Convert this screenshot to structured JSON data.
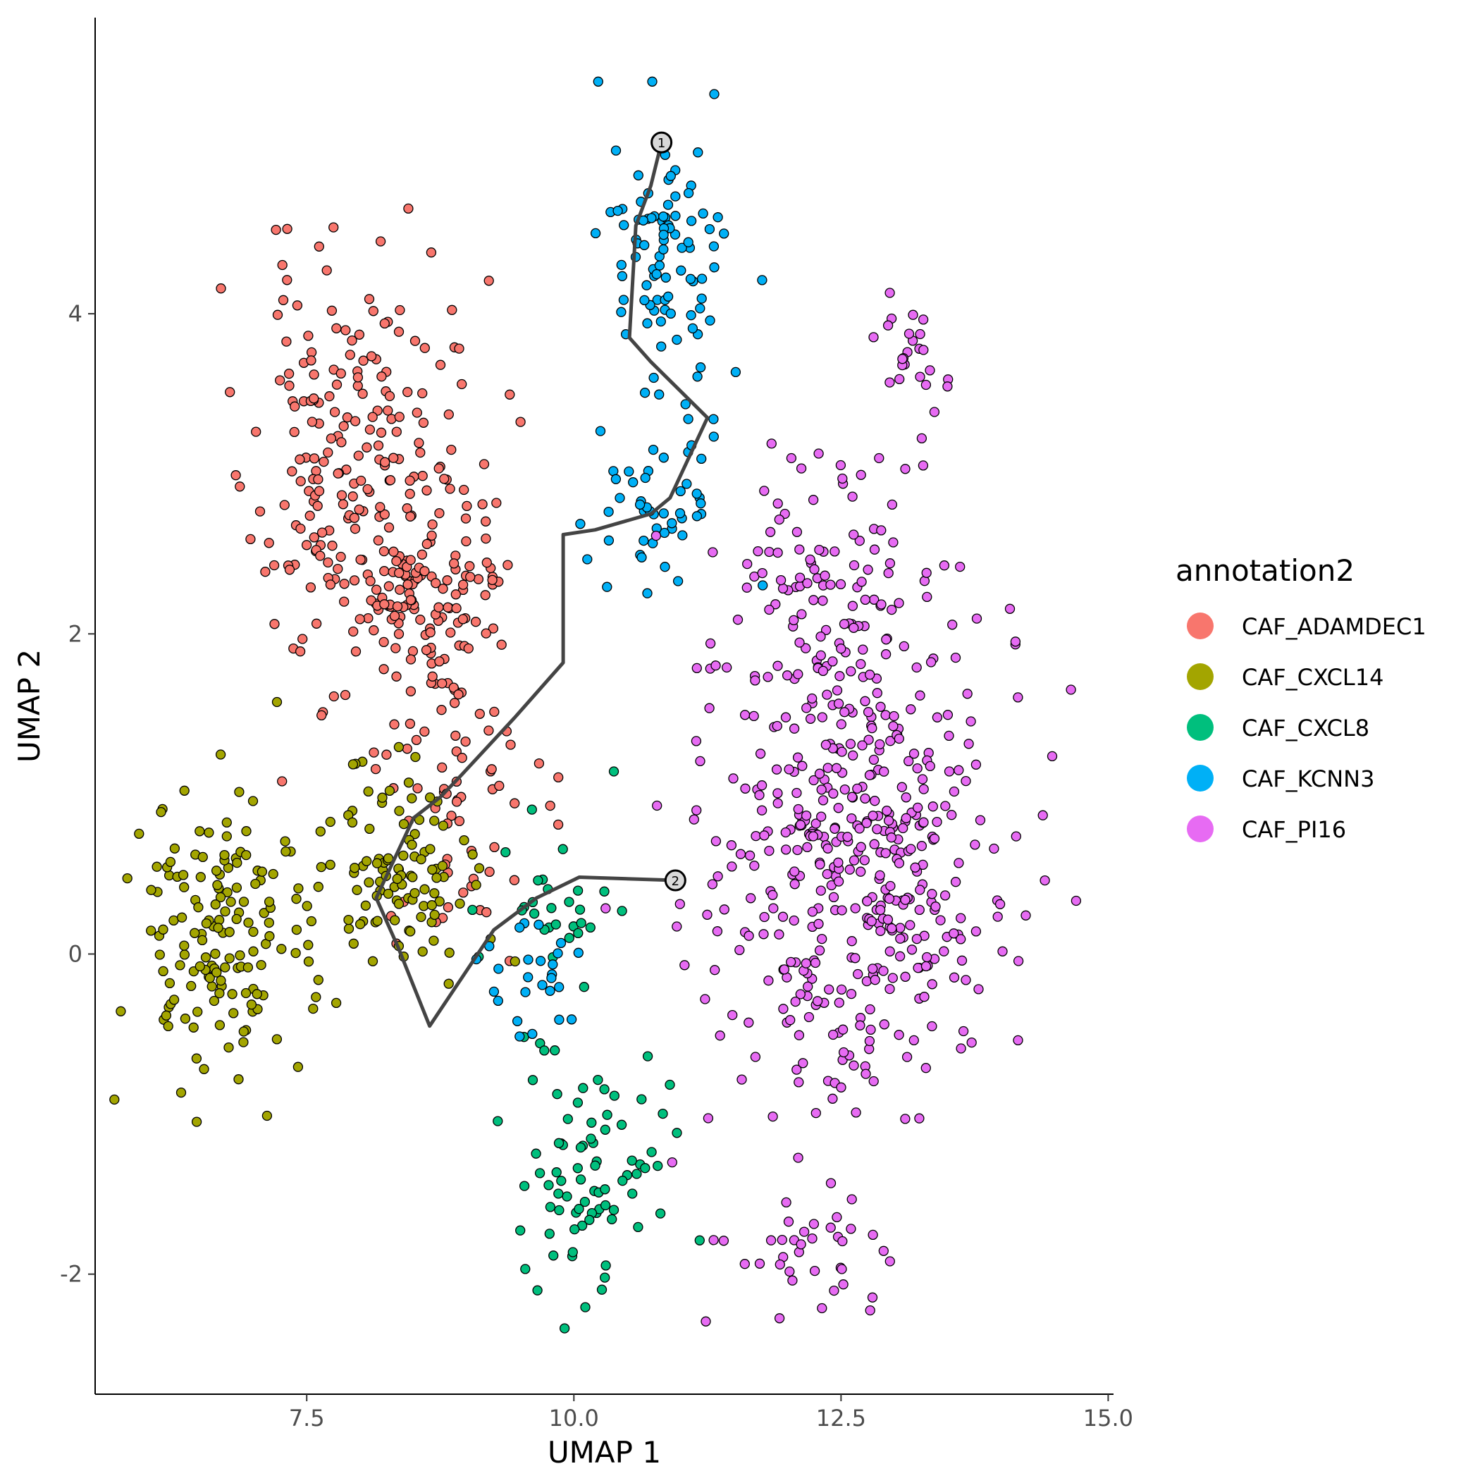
{
  "chart_data": {
    "type": "scatter",
    "xlabel": "UMAP 1",
    "ylabel": "UMAP 2",
    "xlim": [
      5.52,
      15.05
    ],
    "ylim": [
      -2.75,
      5.85
    ],
    "x_ticks": [
      7.5,
      10.0,
      12.5,
      15.0
    ],
    "x_tick_labels": [
      "7.5",
      "10.0",
      "12.5",
      "15.0"
    ],
    "y_ticks": [
      -2,
      0,
      2,
      4
    ],
    "y_tick_labels": [
      "-2",
      "0",
      "2",
      "4"
    ],
    "grid": false,
    "legend": {
      "title": "annotation2",
      "placement": "right",
      "entries": [
        "CAF_ADAMDEC1",
        "CAF_CXCL14",
        "CAF_CXCL8",
        "CAF_KCNN3",
        "CAF_PI16"
      ]
    },
    "colors": {
      "CAF_ADAMDEC1": "#F8766D",
      "CAF_CXCL14": "#A3A500",
      "CAF_CXCL8": "#00BF7D",
      "CAF_KCNN3": "#00B0F6",
      "CAF_PI16": "#E76BF3"
    },
    "clusters": [
      {
        "name": "CAF_ADAMDEC1",
        "n": 400,
        "seed": 11,
        "regions": [
          {
            "center": [
              7.9,
              3.0
            ],
            "spread": [
              0.6,
              0.9
            ],
            "weight": 0.55
          },
          {
            "center": [
              8.7,
              2.2
            ],
            "spread": [
              0.45,
              0.5
            ],
            "weight": 0.3
          },
          {
            "center": [
              8.9,
              1.0
            ],
            "spread": [
              0.5,
              0.55
            ],
            "weight": 0.15
          }
        ]
      },
      {
        "name": "CAF_CXCL14",
        "n": 260,
        "seed": 23,
        "regions": [
          {
            "center": [
              6.7,
              0.1
            ],
            "spread": [
              0.55,
              0.6
            ],
            "weight": 0.6
          },
          {
            "center": [
              8.3,
              0.5
            ],
            "spread": [
              0.45,
              0.45
            ],
            "weight": 0.4
          }
        ]
      },
      {
        "name": "CAF_CXCL8",
        "n": 110,
        "seed": 37,
        "regions": [
          {
            "center": [
              10.2,
              -1.3
            ],
            "spread": [
              0.45,
              0.55
            ],
            "weight": 0.75
          },
          {
            "center": [
              9.8,
              0.3
            ],
            "spread": [
              0.5,
              0.4
            ],
            "weight": 0.25
          }
        ]
      },
      {
        "name": "CAF_KCNN3",
        "n": 170,
        "seed": 41,
        "regions": [
          {
            "center": [
              10.9,
              4.4
            ],
            "spread": [
              0.35,
              0.55
            ],
            "weight": 0.55
          },
          {
            "center": [
              10.8,
              2.8
            ],
            "spread": [
              0.45,
              0.45
            ],
            "weight": 0.3
          },
          {
            "center": [
              9.6,
              -0.1
            ],
            "spread": [
              0.35,
              0.3
            ],
            "weight": 0.15
          }
        ]
      },
      {
        "name": "CAF_PI16",
        "n": 620,
        "seed": 53,
        "regions": [
          {
            "center": [
              12.6,
              0.6
            ],
            "spread": [
              0.9,
              1.0
            ],
            "weight": 0.75
          },
          {
            "center": [
              12.4,
              2.4
            ],
            "spread": [
              0.7,
              0.5
            ],
            "weight": 0.15
          },
          {
            "center": [
              13.2,
              3.8
            ],
            "spread": [
              0.25,
              0.25
            ],
            "weight": 0.04
          },
          {
            "center": [
              12.3,
              -1.8
            ],
            "spread": [
              0.5,
              0.3
            ],
            "weight": 0.06
          }
        ]
      }
    ],
    "trajectory": [
      [
        10.82,
        5.07
      ],
      [
        10.72,
        4.8
      ],
      [
        10.58,
        4.55
      ],
      [
        10.52,
        3.85
      ],
      [
        10.72,
        3.7
      ],
      [
        11.25,
        3.35
      ],
      [
        10.9,
        2.85
      ],
      [
        10.72,
        2.75
      ],
      [
        10.2,
        2.65
      ],
      [
        9.9,
        2.62
      ],
      [
        9.9,
        1.82
      ],
      [
        9.45,
        1.48
      ],
      [
        8.95,
        1.12
      ],
      [
        8.75,
        0.98
      ],
      [
        8.5,
        0.85
      ],
      [
        8.15,
        0.35
      ],
      [
        8.35,
        0.05
      ],
      [
        8.65,
        -0.45
      ],
      [
        8.95,
        -0.15
      ],
      [
        9.25,
        0.15
      ],
      [
        9.65,
        0.35
      ],
      [
        10.05,
        0.48
      ],
      [
        10.95,
        0.46
      ]
    ],
    "nodes": [
      {
        "label": "1",
        "x": 10.82,
        "y": 5.07
      },
      {
        "label": "2",
        "x": 10.95,
        "y": 0.46
      }
    ]
  }
}
